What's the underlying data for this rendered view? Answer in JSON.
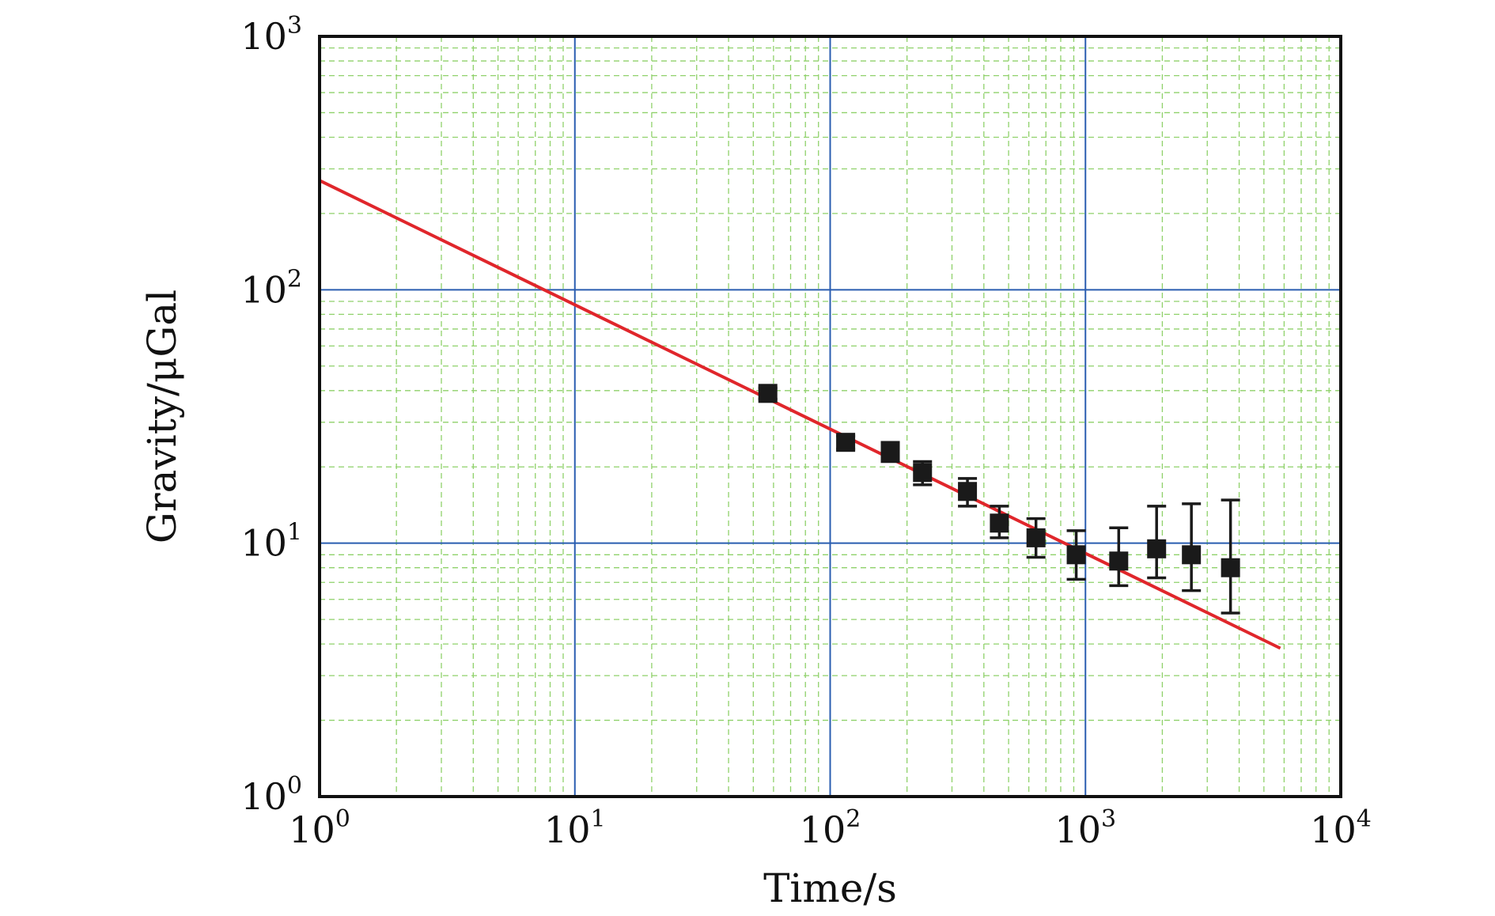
{
  "chart_data": {
    "type": "scatter",
    "title": "",
    "xlabel": "Time/s",
    "ylabel": "Gravity/μGal",
    "xscale": "log",
    "yscale": "log",
    "xlim": [
      1,
      10000
    ],
    "ylim": [
      1,
      1000
    ],
    "x_ticks": [
      {
        "base": "10",
        "exp": "0",
        "value": 1
      },
      {
        "base": "10",
        "exp": "1",
        "value": 10
      },
      {
        "base": "10",
        "exp": "2",
        "value": 100
      },
      {
        "base": "10",
        "exp": "3",
        "value": 1000
      },
      {
        "base": "10",
        "exp": "4",
        "value": 10000
      }
    ],
    "y_ticks": [
      {
        "base": "10",
        "exp": "0",
        "value": 1
      },
      {
        "base": "10",
        "exp": "1",
        "value": 10
      },
      {
        "base": "10",
        "exp": "2",
        "value": 100
      },
      {
        "base": "10",
        "exp": "3",
        "value": 1000
      }
    ],
    "grid": {
      "major": true,
      "minor": true
    },
    "colors": {
      "major_grid": "#2a5db0",
      "minor_grid": "#8fd16a",
      "fit_line": "#e0262b",
      "markers": "#1a1a1a",
      "frame": "#111111"
    },
    "series": [
      {
        "type": "scatter",
        "marker": "square",
        "points": [
          {
            "x": 57,
            "y": 39,
            "lo": 37,
            "hi": 41
          },
          {
            "x": 115,
            "y": 25,
            "lo": 23.5,
            "hi": 26.5
          },
          {
            "x": 172,
            "y": 23,
            "lo": 21,
            "hi": 25
          },
          {
            "x": 230,
            "y": 19,
            "lo": 17,
            "hi": 21
          },
          {
            "x": 345,
            "y": 16,
            "lo": 14,
            "hi": 18
          },
          {
            "x": 460,
            "y": 12,
            "lo": 10.5,
            "hi": 14
          },
          {
            "x": 640,
            "y": 10.5,
            "lo": 8.8,
            "hi": 12.5
          },
          {
            "x": 920,
            "y": 9,
            "lo": 7.2,
            "hi": 11.2
          },
          {
            "x": 1350,
            "y": 8.5,
            "lo": 6.8,
            "hi": 11.5
          },
          {
            "x": 1900,
            "y": 9.5,
            "lo": 7.3,
            "hi": 14
          },
          {
            "x": 2600,
            "y": 9,
            "lo": 6.5,
            "hi": 14.3
          },
          {
            "x": 3700,
            "y": 8,
            "lo": 5.3,
            "hi": 14.8
          }
        ]
      },
      {
        "type": "line",
        "x": [
          1,
          5800
        ],
        "y": [
          270,
          3.85
        ]
      }
    ]
  }
}
